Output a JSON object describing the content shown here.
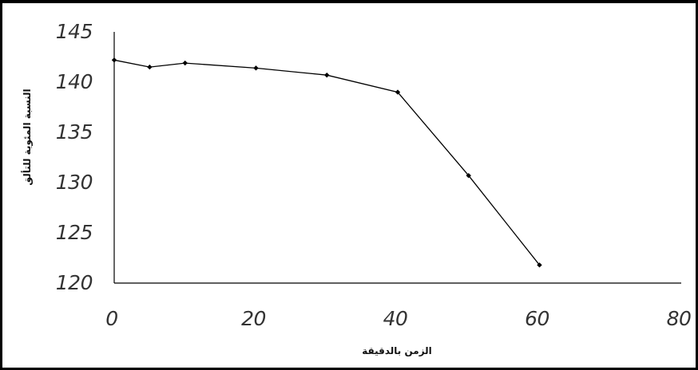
{
  "chart_data": {
    "type": "line",
    "title": "",
    "xlabel": "الزمن بالدقيقة",
    "ylabel": "النسبة المئوية للتألق",
    "xlim": [
      0,
      80
    ],
    "ylim": [
      120,
      145
    ],
    "xticks": [
      "0",
      "20",
      "40",
      "60",
      "80"
    ],
    "yticks": [
      "145",
      "140",
      "135",
      "130",
      "125",
      "120"
    ],
    "grid": false,
    "legend": "none",
    "series": [
      {
        "color": "#000000",
        "x": [
          0,
          5,
          10,
          20,
          30,
          40,
          50,
          60
        ],
        "y": [
          142.2,
          141.5,
          141.9,
          141.4,
          140.7,
          139.0,
          130.7,
          121.8
        ]
      }
    ]
  }
}
